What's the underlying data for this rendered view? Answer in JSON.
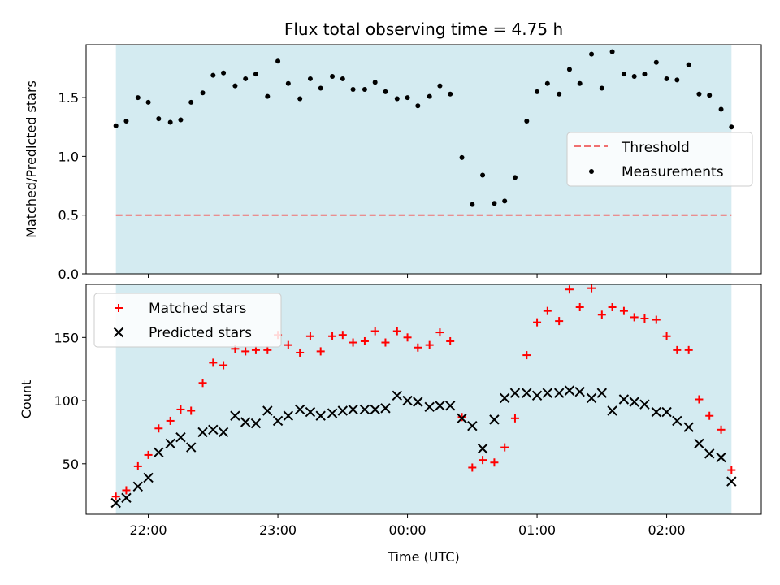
{
  "chart_data": [
    {
      "type": "scatter",
      "title": "Flux total observing time = 4.75 h",
      "xlabel": "",
      "ylabel": "Matched/Predicted stars",
      "ylim": [
        0,
        1.95
      ],
      "yticks": [
        0.0,
        0.5,
        1.0,
        1.5
      ],
      "ytick_labels": [
        "0.0",
        "0.5",
        "1.0",
        "1.5"
      ],
      "shaded_span": {
        "start": 21.75,
        "end": 26.5,
        "color": "#d4ebf1"
      },
      "threshold": {
        "name": "Threshold",
        "y": 0.5,
        "color": "#f07070"
      },
      "legend": {
        "placement": "center-right",
        "entries": [
          "Threshold",
          "Measurements"
        ]
      },
      "series": [
        {
          "name": "Measurements",
          "color": "#000000",
          "marker": "dot",
          "x": [
            21.75,
            21.83,
            21.92,
            22.0,
            22.08,
            22.17,
            22.25,
            22.33,
            22.42,
            22.5,
            22.58,
            22.67,
            22.75,
            22.83,
            22.92,
            23.0,
            23.08,
            23.17,
            23.25,
            23.33,
            23.42,
            23.5,
            23.58,
            23.67,
            23.75,
            23.83,
            23.92,
            24.0,
            24.08,
            24.17,
            24.25,
            24.33,
            24.42,
            24.5,
            24.58,
            24.67,
            24.75,
            24.83,
            24.92,
            25.0,
            25.08,
            25.17,
            25.25,
            25.33,
            25.42,
            25.5,
            25.58,
            25.67,
            25.75,
            25.83,
            25.92,
            26.0,
            26.08,
            26.17,
            26.25,
            26.33,
            26.42,
            26.5
          ],
          "y": [
            1.26,
            1.3,
            1.5,
            1.46,
            1.32,
            1.29,
            1.31,
            1.46,
            1.54,
            1.69,
            1.71,
            1.6,
            1.66,
            1.7,
            1.51,
            1.81,
            1.62,
            1.49,
            1.66,
            1.58,
            1.68,
            1.66,
            1.57,
            1.57,
            1.63,
            1.55,
            1.49,
            1.5,
            1.43,
            1.51,
            1.6,
            1.53,
            0.99,
            0.59,
            0.84,
            0.6,
            0.62,
            0.82,
            1.3,
            1.55,
            1.62,
            1.53,
            1.74,
            1.62,
            1.87,
            1.58,
            1.89,
            1.7,
            1.68,
            1.7,
            1.8,
            1.66,
            1.65,
            1.78,
            1.53,
            1.52,
            1.4,
            1.25
          ]
        }
      ]
    },
    {
      "type": "scatter",
      "title": "",
      "xlabel": "Time (UTC)",
      "ylabel": "Count",
      "ylim": [
        10,
        192
      ],
      "yticks": [
        50,
        100,
        150
      ],
      "ytick_labels": [
        "50",
        "100",
        "150"
      ],
      "xticks": [
        22,
        23,
        24,
        25,
        26
      ],
      "xtick_labels": [
        "22:00",
        "23:00",
        "00:00",
        "01:00",
        "02:00"
      ],
      "xlim": [
        21.52,
        26.73
      ],
      "shaded_span": {
        "start": 21.75,
        "end": 26.5,
        "color": "#d4ebf1"
      },
      "legend": {
        "placement": "top-left",
        "entries": [
          "Matched stars",
          "Predicted stars"
        ]
      },
      "series": [
        {
          "name": "Matched stars",
          "color": "#ff0000",
          "marker": "plus",
          "x": [
            21.75,
            21.83,
            21.92,
            22.0,
            22.08,
            22.17,
            22.25,
            22.33,
            22.42,
            22.5,
            22.58,
            22.67,
            22.75,
            22.83,
            22.92,
            23.0,
            23.08,
            23.17,
            23.25,
            23.33,
            23.42,
            23.5,
            23.58,
            23.67,
            23.75,
            23.83,
            23.92,
            24.0,
            24.08,
            24.17,
            24.25,
            24.33,
            24.42,
            24.5,
            24.58,
            24.67,
            24.75,
            24.83,
            24.92,
            25.0,
            25.08,
            25.17,
            25.25,
            25.33,
            25.42,
            25.5,
            25.58,
            25.67,
            25.75,
            25.83,
            25.92,
            26.0,
            26.08,
            26.17,
            26.25,
            26.33,
            26.42,
            26.5
          ],
          "y": [
            24,
            29,
            48,
            57,
            78,
            84,
            93,
            92,
            114,
            130,
            128,
            141,
            139,
            140,
            140,
            152,
            144,
            138,
            151,
            139,
            151,
            152,
            146,
            147,
            155,
            146,
            155,
            150,
            142,
            144,
            154,
            147,
            87,
            47,
            53,
            51,
            63,
            86,
            136,
            162,
            171,
            163,
            188,
            174,
            189,
            168,
            174,
            171,
            166,
            165,
            164,
            151,
            140,
            140,
            101,
            88,
            77,
            45
          ]
        },
        {
          "name": "Predicted stars",
          "color": "#000000",
          "marker": "x",
          "x": [
            21.75,
            21.83,
            21.92,
            22.0,
            22.08,
            22.17,
            22.25,
            22.33,
            22.42,
            22.5,
            22.58,
            22.67,
            22.75,
            22.83,
            22.92,
            23.0,
            23.08,
            23.17,
            23.25,
            23.33,
            23.42,
            23.5,
            23.58,
            23.67,
            23.75,
            23.83,
            23.92,
            24.0,
            24.08,
            24.17,
            24.25,
            24.33,
            24.42,
            24.5,
            24.58,
            24.67,
            24.75,
            24.83,
            24.92,
            25.0,
            25.08,
            25.17,
            25.25,
            25.33,
            25.42,
            25.5,
            25.58,
            25.67,
            25.75,
            25.83,
            25.92,
            26.0,
            26.08,
            26.17,
            26.25,
            26.33,
            26.42,
            26.5
          ],
          "y": [
            19,
            23,
            32,
            39,
            59,
            66,
            71,
            63,
            75,
            77,
            75,
            88,
            83,
            82,
            92,
            84,
            88,
            93,
            91,
            88,
            90,
            92,
            93,
            93,
            93,
            94,
            104,
            100,
            99,
            95,
            96,
            96,
            86,
            80,
            62,
            85,
            102,
            106,
            106,
            104,
            106,
            106,
            108,
            107,
            102,
            106,
            92,
            101,
            99,
            97,
            91,
            91,
            84,
            79,
            66,
            58,
            55,
            36
          ]
        }
      ]
    }
  ]
}
